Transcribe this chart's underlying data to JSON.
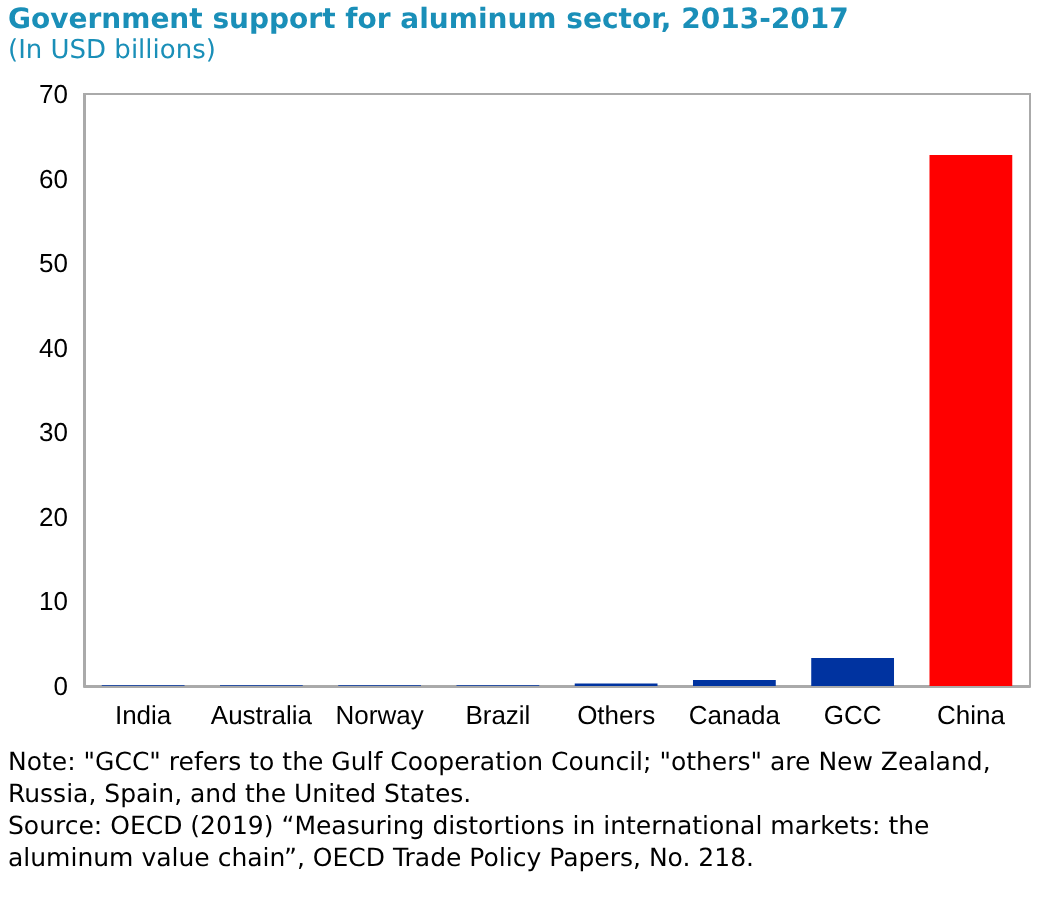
{
  "chart_data": {
    "type": "bar",
    "title": "Government support for aluminum sector, 2013-2017",
    "subtitle": "(In USD billions)",
    "categories": [
      "India",
      "Australia",
      "Norway",
      "Brazil",
      "Others",
      "Canada",
      "GCC",
      "China"
    ],
    "values": [
      0.1,
      0.1,
      0.1,
      0.1,
      0.3,
      0.7,
      3.3,
      62.8
    ],
    "colors": [
      "#0033a0",
      "#0033a0",
      "#0033a0",
      "#0033a0",
      "#0033a0",
      "#0033a0",
      "#0033a0",
      "#ff0000"
    ],
    "ylim": [
      0,
      70
    ],
    "yticks": [
      0,
      10,
      20,
      30,
      40,
      50,
      60,
      70
    ],
    "grid": false,
    "annotations": [
      "Note: \"GCC\" refers to the Gulf Cooperation Council; \"others\" are New Zealand, Russia, Spain, and the United States.",
      "Source: OECD (2019) “Measuring distortions in international markets: the aluminum value chain”, OECD Trade Policy Papers, No. 218."
    ]
  }
}
